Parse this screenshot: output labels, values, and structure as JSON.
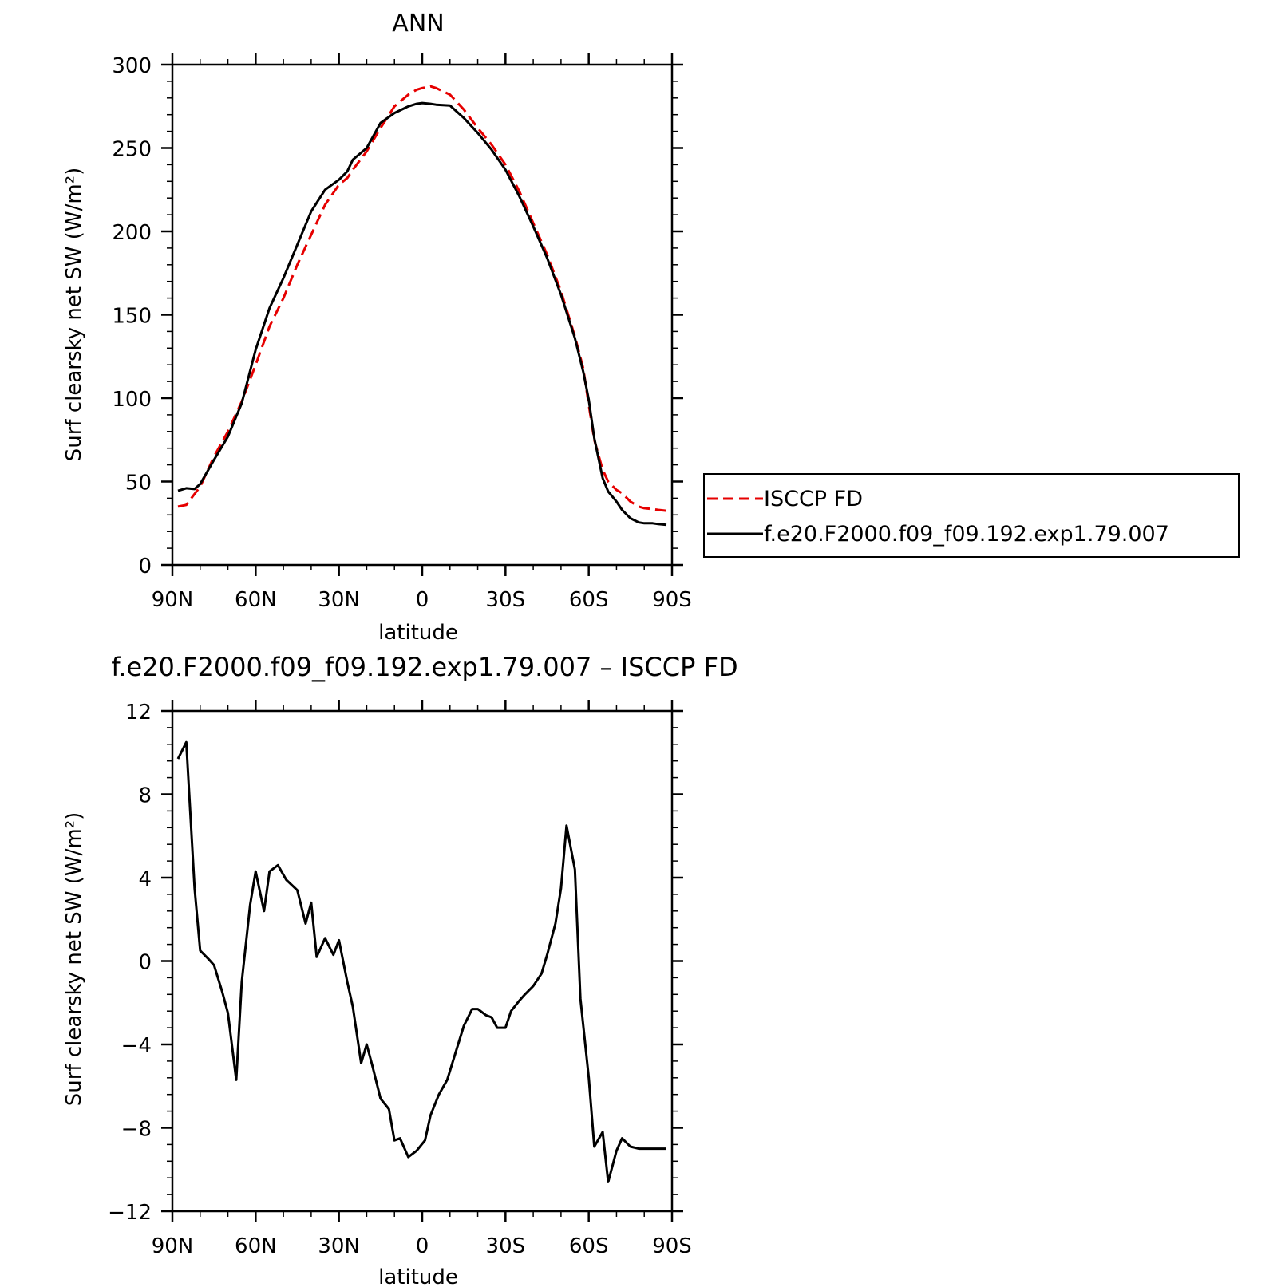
{
  "chart_data": [
    {
      "type": "line",
      "title": "ANN",
      "xlabel": "latitude",
      "ylabel": "Surf clearsky net SW (W/m²)",
      "xlim": [
        -90,
        90
      ],
      "ylim": [
        0,
        300
      ],
      "xticks": [
        -90,
        -60,
        -30,
        0,
        30,
        60,
        90
      ],
      "xticklabels": [
        "90N",
        "60N",
        "30N",
        "0",
        "30S",
        "60S",
        "90S"
      ],
      "yticks": [
        0,
        50,
        100,
        150,
        200,
        250,
        300
      ],
      "yticklabels": [
        "0",
        "50",
        "100",
        "150",
        "200",
        "250",
        "300"
      ],
      "legend": "right",
      "series": [
        {
          "name": "ISCCP FD",
          "color": "#e60000",
          "dash": "dashed",
          "x": [
            -88,
            -85,
            -80,
            -75,
            -70,
            -65,
            -60,
            -55,
            -50,
            -45,
            -40,
            -35,
            -30,
            -27,
            -25,
            -20,
            -15,
            -10,
            -5,
            -2,
            0,
            3,
            5,
            10,
            15,
            20,
            25,
            30,
            35,
            40,
            45,
            50,
            55,
            58,
            60,
            62,
            65,
            67,
            70,
            72,
            75,
            78,
            80,
            83,
            85,
            88
          ],
          "y": [
            35,
            36,
            47,
            65,
            80,
            98,
            120,
            143,
            160,
            180,
            198,
            216,
            228,
            232,
            237,
            248,
            262,
            275,
            282,
            285,
            286,
            287,
            286,
            282,
            273,
            262,
            252,
            240,
            224,
            205,
            186,
            164,
            137,
            118,
            96,
            75,
            57,
            50,
            45,
            43,
            38,
            35,
            34,
            33.5,
            33,
            32.5
          ]
        },
        {
          "name": "f.e20.F2000.f09_f09.192.exp1.79.007",
          "color": "#000000",
          "dash": "solid",
          "x": [
            -88,
            -85,
            -82,
            -80,
            -75,
            -70,
            -65,
            -60,
            -55,
            -50,
            -45,
            -40,
            -35,
            -30,
            -27,
            -25,
            -20,
            -15,
            -10,
            -5,
            -2,
            0,
            3,
            5,
            10,
            15,
            20,
            25,
            30,
            35,
            40,
            45,
            50,
            55,
            58,
            60,
            62,
            65,
            67,
            70,
            72,
            75,
            78,
            80,
            83,
            85,
            88
          ],
          "y": [
            44.5,
            46,
            45.5,
            48.5,
            63,
            77,
            97,
            129,
            154,
            172,
            192,
            212,
            225,
            231,
            236,
            243,
            250,
            265,
            271,
            275,
            276.5,
            277,
            276.5,
            276,
            275.5,
            268,
            259,
            249,
            237,
            221,
            203,
            184,
            162,
            136,
            116,
            99,
            76,
            52,
            44,
            38,
            33,
            28,
            25.5,
            25,
            25,
            24.5,
            24
          ]
        }
      ]
    },
    {
      "type": "line",
      "title": "f.e20.F2000.f09_f09.192.exp1.79.007 – ISCCP FD",
      "xlabel": "latitude",
      "ylabel": "Surf clearsky net SW (W/m²)",
      "xlim": [
        -90,
        90
      ],
      "ylim": [
        -12,
        12
      ],
      "xticks": [
        -90,
        -60,
        -30,
        0,
        30,
        60,
        90
      ],
      "xticklabels": [
        "90N",
        "60N",
        "30N",
        "0",
        "30S",
        "60S",
        "90S"
      ],
      "yticks": [
        -12,
        -8,
        -4,
        0,
        4,
        8,
        12
      ],
      "yticklabels": [
        "−12",
        "−8",
        "−4",
        "0",
        "4",
        "8",
        "12"
      ],
      "series": [
        {
          "color": "#000000",
          "dash": "solid",
          "x": [
            -88,
            -85,
            -82,
            -80,
            -77,
            -75,
            -72,
            -70,
            -67,
            -65,
            -62,
            -60,
            -57,
            -55,
            -52,
            -49,
            -45,
            -42,
            -40,
            -38,
            -35,
            -32,
            -30,
            -27,
            -25,
            -22,
            -20,
            -18,
            -15,
            -12,
            -10,
            -8,
            -5,
            -2,
            1,
            3,
            6,
            9,
            12,
            15,
            18,
            20,
            23,
            25,
            27,
            30,
            32,
            35,
            37,
            40,
            43,
            45,
            48,
            50,
            52,
            55,
            57,
            60,
            62,
            65,
            67,
            70,
            72,
            75,
            78,
            80,
            83,
            85,
            88
          ],
          "y": [
            9.7,
            10.5,
            3.5,
            0.5,
            0.1,
            -0.2,
            -1.5,
            -2.5,
            -5.7,
            -1.0,
            2.7,
            4.3,
            2.4,
            4.3,
            4.6,
            3.9,
            3.4,
            1.8,
            2.8,
            0.2,
            1.1,
            0.3,
            1.0,
            -1.0,
            -2.2,
            -4.9,
            -4.0,
            -5.0,
            -6.6,
            -7.1,
            -8.6,
            -8.5,
            -9.4,
            -9.1,
            -8.6,
            -7.4,
            -6.4,
            -5.7,
            -4.4,
            -3.1,
            -2.3,
            -2.3,
            -2.6,
            -2.7,
            -3.2,
            -3.2,
            -2.4,
            -1.9,
            -1.6,
            -1.2,
            -0.6,
            0.3,
            1.8,
            3.5,
            6.5,
            4.4,
            -1.8,
            -5.6,
            -8.9,
            -8.2,
            -10.6,
            -9.1,
            -8.5,
            -8.9,
            -9,
            -9,
            -9,
            -9,
            -9
          ]
        }
      ]
    }
  ]
}
